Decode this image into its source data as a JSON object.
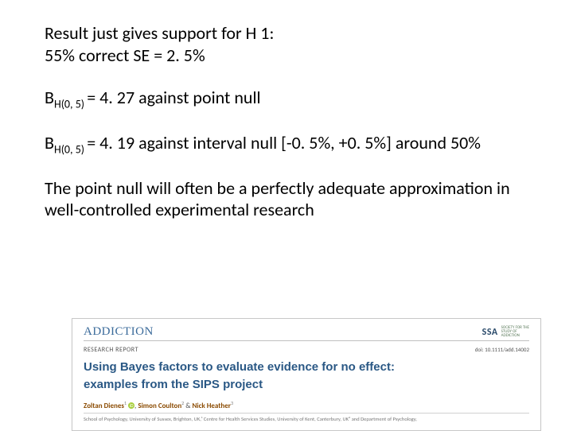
{
  "content": {
    "l1": "Result just gives support for H 1:",
    "l2": "55% correct SE = 2. 5%",
    "bf1_pre": "B",
    "bf1_sub": "H(0, 5) ",
    "bf1_post": "= 4. 27 against  point null",
    "bf2_pre": "B",
    "bf2_sub": "H(0, 5) ",
    "bf2_post": "= 4. 19 against  interval null [-0. 5%, +0. 5%] around 50%",
    "para": "The point null will often be a perfectly adequate approximation in well-controlled experimental research"
  },
  "paper": {
    "journal": "ADDICTION",
    "ssa": "SSA",
    "ssa_sub1": "SOCIETY FOR THE",
    "ssa_sub2": "STUDY OF",
    "ssa_sub3": "ADDICTION",
    "report": "RESEARCH REPORT",
    "doi": "doi: 10.1111/add.14002",
    "title_l1": "Using Bayes factors to evaluate evidence for no effect:",
    "title_l2": "examples from the SIPS project",
    "a1": "Zoltan Dienes",
    "a1s": "1",
    "a2": "Simon Coulton",
    "a2s": "2",
    "a3": "Nick Heather",
    "a3s": "3",
    "amp": " & ",
    "comma": ", ",
    "affil": "School of Psychology, University of Sussex, Brighton, UK,¹ Centre for Health Services Studies, University of Kent, Canterbury, UK² and Department of Psychology,"
  }
}
